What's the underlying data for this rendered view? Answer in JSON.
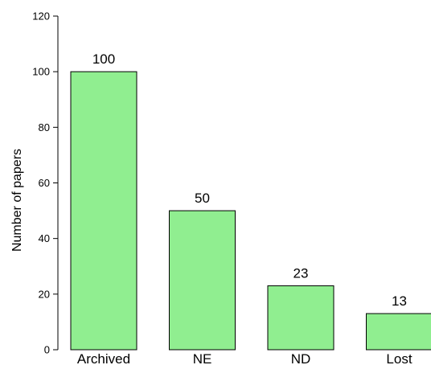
{
  "chart_data": {
    "type": "bar",
    "title": "",
    "xlabel": "",
    "ylabel": "Number of papers",
    "ylim": [
      0,
      120
    ],
    "yticks": [
      0,
      20,
      40,
      60,
      80,
      100,
      120
    ],
    "categories": [
      "Archived",
      "NE",
      "ND",
      "Lost"
    ],
    "values": [
      100,
      50,
      23,
      13
    ],
    "data_labels": [
      "100",
      "50",
      "23",
      "13"
    ],
    "grid": false,
    "legend": "none",
    "colors": {
      "bar_fill": "#90ee90",
      "bar_stroke": "#000000"
    }
  }
}
